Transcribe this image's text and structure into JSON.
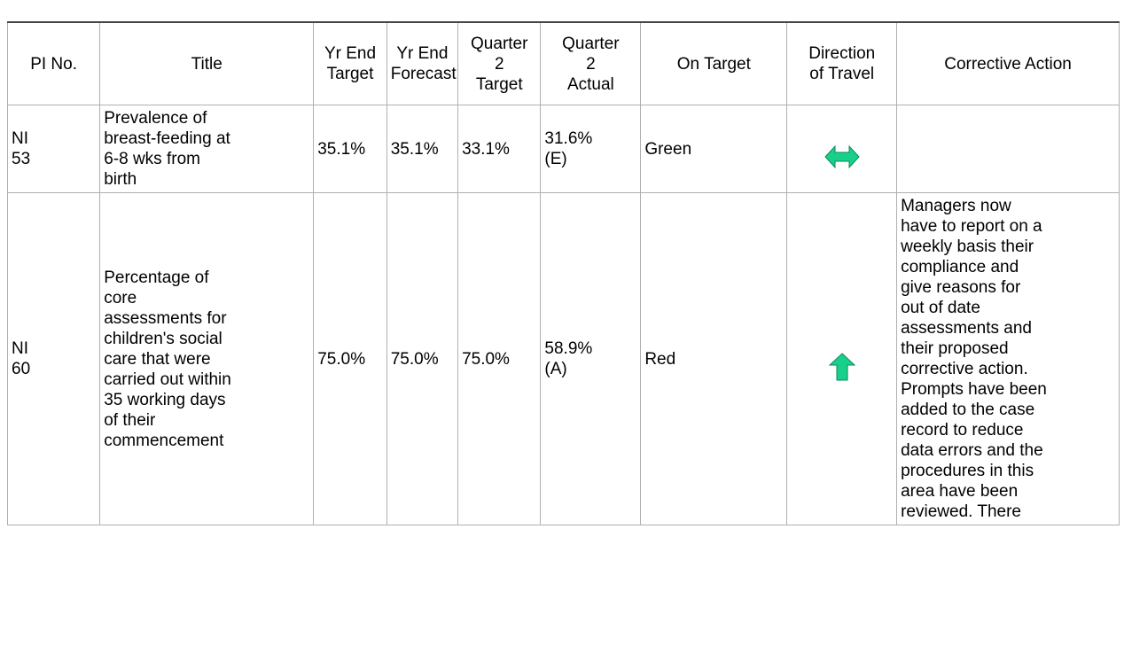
{
  "table": {
    "headers": [
      "PI No.",
      "Title",
      "Yr End\nTarget",
      "Yr End\nForecast",
      "Quarter\n2\nTarget",
      "Quarter\n2\nActual",
      "On Target",
      "Direction\nof Travel",
      "Corrective Action"
    ],
    "rows": [
      {
        "pi": "NI\n53",
        "title": "Prevalence of\nbreast-feeding at\n6-8 wks from\nbirth",
        "yr_end_target": "35.1%",
        "yr_end_forecast": "35.1%",
        "q2_target": "33.1%",
        "q2_actual": "31.6%\n(E)",
        "on_target": "Green"
      },
      {
        "pi": "NI\n60",
        "title": "Percentage of\ncore\nassessments for\nchildren's social\ncare that were\ncarried out within\n35 working days\nof their\ncommencement",
        "yr_end_target": "75.0%",
        "yr_end_forecast": "75.0%",
        "q2_target": "75.0%",
        "q2_actual": "58.9%\n(A)",
        "on_target": "Red",
        "corrective_action": "Managers now\nhave to report on a\nweekly basis their\ncompliance and\ngive reasons for\nout of date\nassessments and\ntheir proposed\ncorrective action.\nPrompts have been\nadded to the case\nrecord to reduce\ndata errors and the\nprocedures in this\narea have been\nreviewed. There"
      }
    ]
  }
}
